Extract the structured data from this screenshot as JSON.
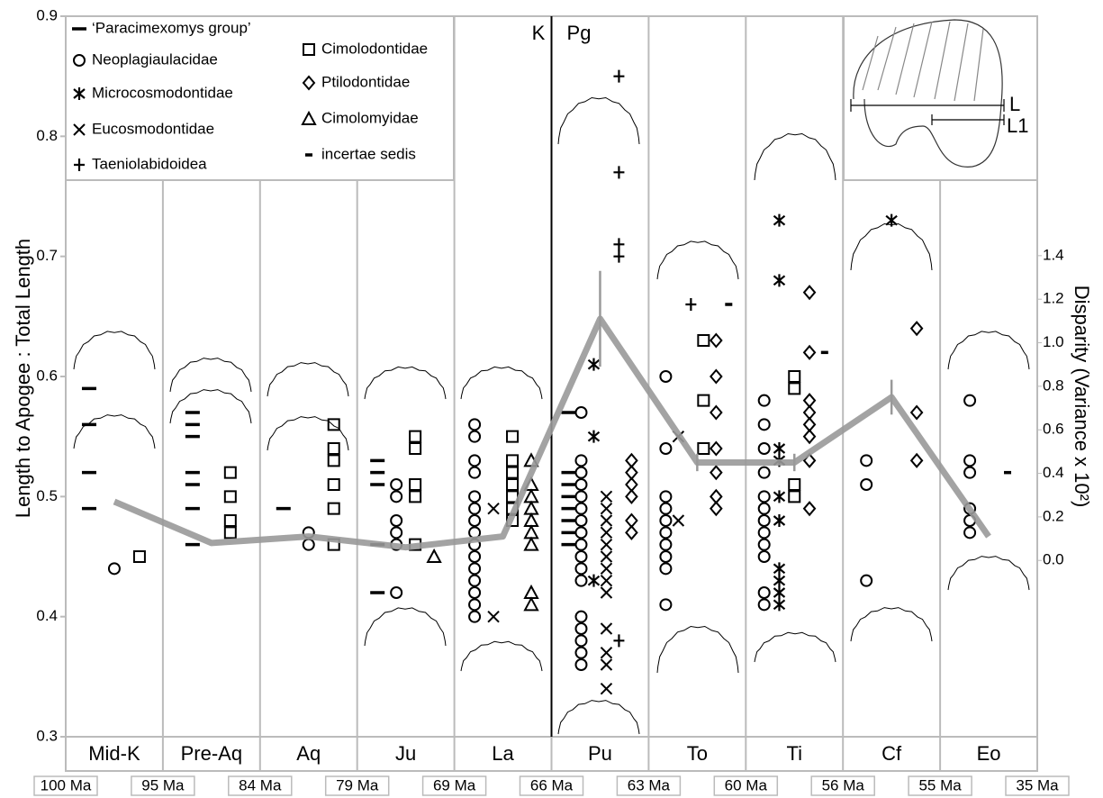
{
  "chart_data": {
    "type": "scatter",
    "y_label": "Length to Apogee : Total Length",
    "y2_label": "Disparity (Variance x 10²)",
    "categories": [
      "Mid-K",
      "Pre-Aq",
      "Aq",
      "Ju",
      "La",
      "Pu",
      "To",
      "Ti",
      "Cf",
      "Eo"
    ],
    "boundary_labels": [
      "100 Ma",
      "95 Ma",
      "84 Ma",
      "79 Ma",
      "69 Ma",
      "66 Ma",
      "63 Ma",
      "60 Ma",
      "56 Ma",
      "55 Ma",
      "35 Ma"
    ],
    "annotations": [
      "K",
      "Pg"
    ],
    "inset_labels": [
      "L",
      "L1"
    ],
    "ylim": [
      0.3,
      0.9
    ],
    "yticks": [
      0.3,
      0.4,
      0.5,
      0.6,
      0.7,
      0.8,
      0.9
    ],
    "y2lim": [
      -0.81,
      2.5
    ],
    "y2ticks": [
      {
        "value": 0,
        "label": "0.0"
      },
      0.2,
      0.4,
      0.6,
      0.8,
      {
        "value": 1,
        "label": "1.0"
      },
      1.2,
      1.4
    ],
    "series": [
      {
        "name": "‘Paracimexomys group’",
        "marker": "dash",
        "color": "#000000",
        "values": [
          [
            0.59,
            0.56,
            0.52,
            0.49
          ],
          [
            0.57,
            0.56,
            0.55,
            0.52,
            0.51,
            0.49,
            0.46
          ],
          [
            0.49
          ],
          [
            0.53,
            0.52,
            0.51,
            0.46,
            0.42
          ],
          [],
          [
            0.57,
            0.52,
            0.51,
            0.5,
            0.49,
            0.48,
            0.47,
            0.46
          ],
          [],
          [],
          [],
          []
        ]
      },
      {
        "name": "Neoplagiaulacidae",
        "marker": "circle",
        "color": "#000000",
        "values": [
          [
            0.44
          ],
          [],
          [
            0.47,
            0.46
          ],
          [
            0.51,
            0.5,
            0.48,
            0.47,
            0.46,
            0.42
          ],
          [
            0.56,
            0.55,
            0.53,
            0.52,
            0.5,
            0.49,
            0.48,
            0.47,
            0.46,
            0.45,
            0.44,
            0.43,
            0.42,
            0.41,
            0.4
          ],
          [
            0.57,
            0.53,
            0.52,
            0.51,
            0.5,
            0.49,
            0.48,
            0.47,
            0.46,
            0.45,
            0.44,
            0.43,
            0.4,
            0.39,
            0.38,
            0.37,
            0.36
          ],
          [
            0.6,
            0.54,
            0.5,
            0.49,
            0.48,
            0.47,
            0.46,
            0.45,
            0.44,
            0.41
          ],
          [
            0.58,
            0.56,
            0.54,
            0.52,
            0.5,
            0.49,
            0.48,
            0.47,
            0.46,
            0.45,
            0.42,
            0.41
          ],
          [
            0.53,
            0.51,
            0.43
          ],
          [
            0.58,
            0.53,
            0.52,
            0.49,
            0.48,
            0.47
          ]
        ]
      },
      {
        "name": "Microcosmodontidae",
        "marker": "asterisk",
        "color": "#000000",
        "values": [
          [],
          [],
          [],
          [],
          [],
          [
            0.61,
            0.55,
            0.43
          ],
          [],
          [
            0.73,
            0.68,
            0.54,
            0.53,
            0.5,
            0.48,
            0.44,
            0.43,
            0.42,
            0.41
          ],
          [
            0.73
          ],
          []
        ]
      },
      {
        "name": "Eucosmodontidae",
        "marker": "cross",
        "color": "#000000",
        "values": [
          [],
          [],
          [],
          [],
          [
            0.49,
            0.4
          ],
          [
            0.5,
            0.49,
            0.48,
            0.47,
            0.46,
            0.45,
            0.44,
            0.43,
            0.42,
            0.39,
            0.37,
            0.36,
            0.34
          ],
          [
            0.55,
            0.48
          ],
          [],
          [],
          []
        ]
      },
      {
        "name": "Taeniolabidoidea",
        "marker": "plus",
        "color": "#000000",
        "values": [
          [],
          [],
          [],
          [],
          [],
          [
            0.85,
            0.77,
            0.71,
            0.7,
            0.38
          ],
          [
            0.66
          ],
          [],
          [],
          []
        ]
      },
      {
        "name": "Cimolodontidae",
        "marker": "square",
        "color": "#000000",
        "values": [
          [
            0.45
          ],
          [
            0.52,
            0.5,
            0.48,
            0.47
          ],
          [
            0.56,
            0.54,
            0.53,
            0.51,
            0.49,
            0.46
          ],
          [
            0.55,
            0.54,
            0.51,
            0.5,
            0.46
          ],
          [
            0.55,
            0.53,
            0.52,
            0.51,
            0.5,
            0.49,
            0.48
          ],
          [],
          [
            0.63,
            0.58,
            0.54
          ],
          [
            0.6,
            0.59,
            0.51,
            0.5
          ],
          [],
          []
        ]
      },
      {
        "name": "Ptilodontidae",
        "marker": "diamond",
        "color": "#000000",
        "values": [
          [],
          [],
          [],
          [],
          [],
          [
            0.53,
            0.52,
            0.51,
            0.5,
            0.48,
            0.47
          ],
          [
            0.63,
            0.6,
            0.57,
            0.54,
            0.52,
            0.5,
            0.49
          ],
          [
            0.67,
            0.62,
            0.58,
            0.57,
            0.56,
            0.55,
            0.53,
            0.49
          ],
          [
            0.64,
            0.57,
            0.53
          ],
          []
        ]
      },
      {
        "name": "Cimolomyidae",
        "marker": "triangle",
        "color": "#000000",
        "values": [
          [],
          [],
          [],
          [
            0.45
          ],
          [
            0.53,
            0.51,
            0.5,
            0.49,
            0.48,
            0.47,
            0.46,
            0.42,
            0.41
          ],
          [],
          [],
          [],
          [],
          []
        ]
      },
      {
        "name": "incertae sedis",
        "marker": "short-dash",
        "color": "#000000",
        "values": [
          [],
          [],
          [],
          [],
          [],
          [],
          [
            0.66
          ],
          [
            0.62
          ],
          [],
          [
            0.52
          ]
        ]
      }
    ],
    "disparity": {
      "axis": "y2",
      "color": "#999999",
      "values": [
        0.27,
        0.08,
        0.11,
        0.06,
        0.11,
        1.11,
        0.45,
        0.45,
        0.75,
        0.11
      ],
      "errors": [
        null,
        null,
        null,
        null,
        null,
        0.22,
        0.04,
        0.04,
        0.08,
        null
      ]
    }
  }
}
